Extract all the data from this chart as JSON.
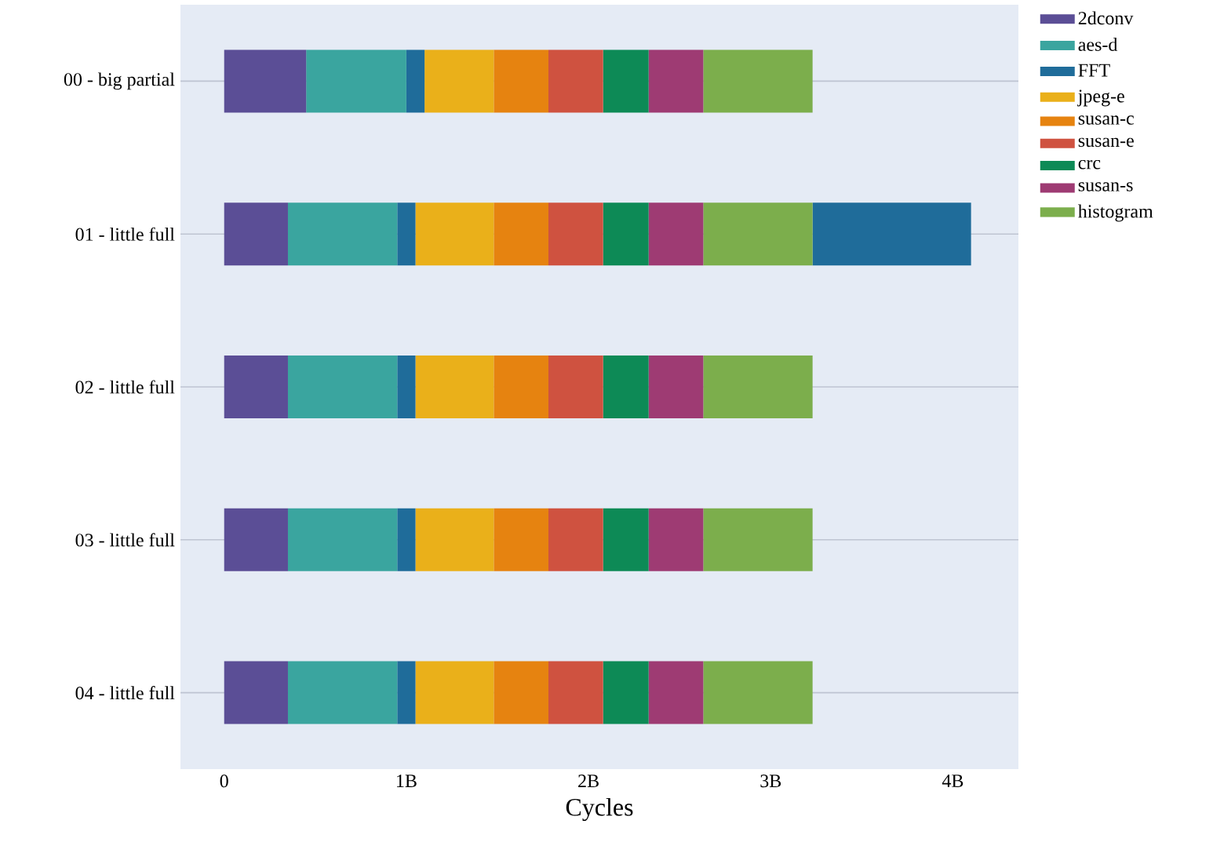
{
  "chart_data": {
    "type": "bar",
    "orientation": "horizontal",
    "stacked": true,
    "xlabel": "Cycles",
    "categories": [
      "00 - big partial",
      "01 - little full",
      "02 - little full",
      "03 - little full",
      "04 - little full"
    ],
    "xlim": [
      -240000000,
      4360000000
    ],
    "xticks": [
      {
        "value": 0,
        "label": "0"
      },
      {
        "value": 1000000000,
        "label": "1B"
      },
      {
        "value": 2000000000,
        "label": "2B"
      },
      {
        "value": 3000000000,
        "label": "3B"
      },
      {
        "value": 4000000000,
        "label": "4B"
      }
    ],
    "grid": "y",
    "legend": "top right",
    "series": [
      {
        "name": "2dconv",
        "color": "#5b4e96",
        "values": [
          450000000,
          350000000,
          350000000,
          350000000,
          350000000
        ]
      },
      {
        "name": "aes-d",
        "color": "#3aa59f",
        "values": [
          550000000,
          600000000,
          600000000,
          600000000,
          600000000
        ]
      },
      {
        "name": "FFT",
        "color": "#1f6c9a",
        "values": [
          100000000,
          100000000,
          100000000,
          100000000,
          100000000
        ]
      },
      {
        "name": "jpeg-e",
        "color": "#eab01a",
        "values": [
          380000000,
          430000000,
          430000000,
          430000000,
          430000000
        ]
      },
      {
        "name": "susan-c",
        "color": "#e68310",
        "values": [
          300000000,
          300000000,
          300000000,
          300000000,
          300000000
        ]
      },
      {
        "name": "susan-e",
        "color": "#cf5240",
        "values": [
          300000000,
          300000000,
          300000000,
          300000000,
          300000000
        ]
      },
      {
        "name": "crc",
        "color": "#0d8a56",
        "values": [
          250000000,
          250000000,
          250000000,
          250000000,
          250000000
        ]
      },
      {
        "name": "susan-s",
        "color": "#9e3b73",
        "values": [
          300000000,
          300000000,
          300000000,
          300000000,
          300000000
        ]
      },
      {
        "name": "histogram",
        "color": "#7cae4c",
        "values": [
          600000000,
          600000000,
          600000000,
          600000000,
          600000000
        ]
      },
      {
        "color": "#1f6c9a",
        "values": [
          0,
          870000000,
          0,
          0,
          0
        ]
      }
    ]
  }
}
